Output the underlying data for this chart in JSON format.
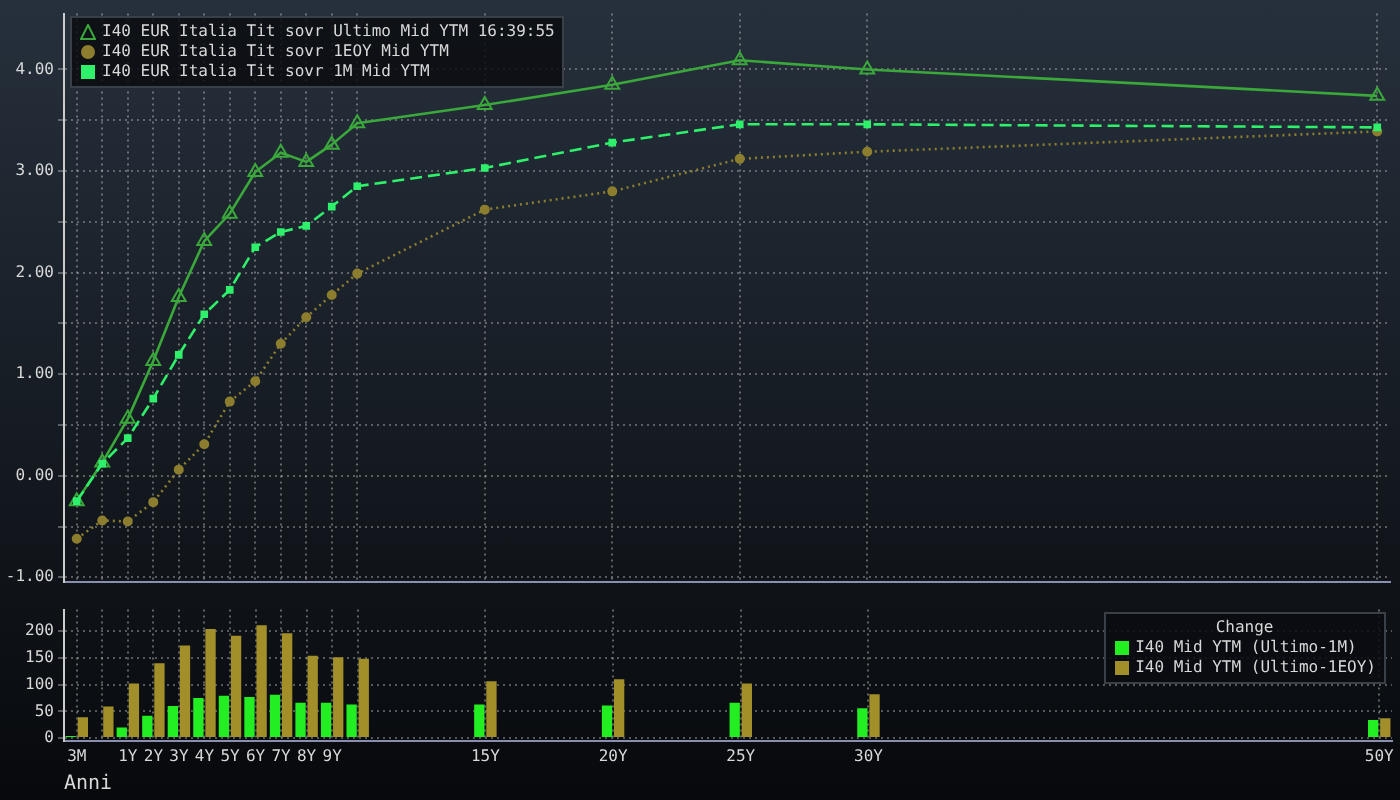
{
  "chart_data": [
    {
      "type": "line",
      "categories": [
        null,
        null,
        null,
        null,
        null,
        null,
        null,
        null,
        null,
        null,
        null,
        null,
        null,
        null,
        null,
        null,
        null,
        null,
        null,
        null,
        null,
        null,
        null,
        null,
        null,
        null,
        null,
        null,
        null,
        null,
        null,
        null,
        null,
        null,
        null,
        null,
        null,
        null,
        null,
        null,
        null,
        null,
        null,
        null,
        null,
        null,
        null,
        null,
        null,
        null,
        null,
        null
      ],
      "series": [
        {
          "name": "I40 EUR Italia Tit sovr Ultimo Mid YTM 16:39:55",
          "color": "#3aa83a",
          "marker": "triangle",
          "line_style": "solid",
          "values": [
            -0.25,
            0.13,
            0.56,
            1.13,
            1.76,
            2.31,
            2.58,
            2.99,
            3.18,
            3.09,
            3.26,
            3.47,
            null,
            null,
            null,
            null,
            3.65,
            null,
            null,
            null,
            null,
            3.85,
            null,
            null,
            null,
            null,
            4.09,
            null,
            null,
            null,
            null,
            4.0,
            null,
            null,
            null,
            null,
            null,
            null,
            null,
            null,
            null,
            null,
            null,
            null,
            null,
            null,
            null,
            null,
            null,
            null,
            null,
            3.74
          ]
        },
        {
          "name": "I40 EUR Italia Tit sovr 1EOY Mid YTM",
          "color": "#8c7e2e",
          "marker": "circle",
          "line_style": "dotted",
          "values": [
            -0.62,
            -0.44,
            -0.45,
            -0.26,
            0.06,
            0.31,
            0.73,
            0.93,
            1.3,
            1.56,
            1.78,
            1.99,
            null,
            null,
            null,
            null,
            2.62,
            null,
            null,
            null,
            null,
            2.8,
            null,
            null,
            null,
            null,
            3.12,
            null,
            null,
            null,
            null,
            3.19,
            null,
            null,
            null,
            null,
            null,
            null,
            null,
            null,
            null,
            null,
            null,
            null,
            null,
            null,
            null,
            null,
            null,
            null,
            null,
            3.39
          ]
        },
        {
          "name": "I40 EUR Italia Tit sovr 1M Mid YTM",
          "color": "#2ef06a",
          "marker": "square",
          "line_style": "dashed",
          "values": [
            -0.25,
            0.12,
            0.37,
            0.76,
            1.19,
            1.59,
            1.83,
            2.25,
            2.4,
            2.46,
            2.65,
            2.85,
            null,
            null,
            null,
            null,
            3.03,
            null,
            null,
            null,
            null,
            3.28,
            null,
            null,
            null,
            null,
            3.46,
            null,
            null,
            null,
            null,
            3.46,
            null,
            null,
            null,
            null,
            null,
            null,
            null,
            null,
            null,
            null,
            null,
            null,
            null,
            null,
            null,
            null,
            null,
            null,
            null,
            3.43
          ]
        }
      ],
      "ylim": [
        -1.05,
        4.55
      ],
      "yticks": [
        {
          "value": -1,
          "label": "-1.00"
        },
        {
          "value": -0.5,
          "label": null
        },
        {
          "value": 0,
          "label": "0.00"
        },
        {
          "value": 0.5,
          "label": null
        },
        {
          "value": 1,
          "label": "1.00"
        },
        {
          "value": 1.5,
          "label": null
        },
        {
          "value": 2,
          "label": "2.00"
        },
        {
          "value": 2.5,
          "label": null
        },
        {
          "value": 3,
          "label": "3.00"
        },
        {
          "value": 3.5,
          "label": null
        },
        {
          "value": 4,
          "label": "4.00"
        }
      ],
      "grid": true,
      "legend": "top left",
      "tick_labels": "y"
    },
    {
      "type": "bar",
      "xlabel": "Anni",
      "legend_title": "Change",
      "categories": [
        "3M",
        null,
        "1Y",
        "2Y",
        "3Y",
        "4Y",
        "5Y",
        "6Y",
        "7Y",
        "8Y",
        "9Y",
        null,
        null,
        null,
        null,
        null,
        "15Y",
        null,
        null,
        null,
        null,
        "20Y",
        null,
        null,
        null,
        null,
        "25Y",
        null,
        null,
        null,
        null,
        "30Y",
        null,
        null,
        null,
        null,
        null,
        null,
        null,
        null,
        null,
        null,
        null,
        null,
        null,
        null,
        null,
        null,
        null,
        null,
        null,
        "50Y"
      ],
      "series": [
        {
          "name": "I40 Mid YTM (Ultimo-1M)",
          "color": "#22ee22",
          "values": [
            4,
            null,
            20,
            42,
            60,
            75,
            79,
            77,
            81,
            66,
            66,
            63,
            null,
            null,
            null,
            null,
            63,
            null,
            null,
            null,
            null,
            61,
            null,
            null,
            null,
            null,
            66,
            null,
            null,
            null,
            null,
            56,
            null,
            null,
            null,
            null,
            null,
            null,
            null,
            null,
            null,
            null,
            null,
            null,
            null,
            null,
            null,
            null,
            null,
            null,
            null,
            34
          ]
        },
        {
          "name": "I40 Mid YTM (Ultimo-1EOY)",
          "color": "#a38f2a",
          "values": [
            39,
            59,
            102,
            140,
            173,
            204,
            191,
            211,
            196,
            154,
            151,
            148,
            null,
            null,
            null,
            null,
            106,
            null,
            null,
            null,
            null,
            110,
            null,
            null,
            null,
            null,
            102,
            null,
            null,
            null,
            null,
            82,
            null,
            null,
            null,
            null,
            null,
            null,
            null,
            null,
            null,
            null,
            null,
            null,
            null,
            null,
            null,
            null,
            null,
            null,
            null,
            37
          ]
        }
      ],
      "ylim": [
        -5,
        240
      ],
      "yticks": [
        0,
        50,
        100,
        150,
        200
      ],
      "grid": true,
      "legend": "top right"
    }
  ]
}
